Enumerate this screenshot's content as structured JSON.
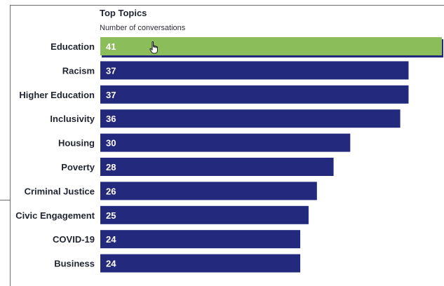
{
  "chart_data": {
    "type": "bar",
    "orientation": "horizontal",
    "title": "Top Topics",
    "subtitle": "Number of conversations",
    "categories": [
      "Education",
      "Racism",
      "Higher Education",
      "Inclusivity",
      "Housing",
      "Poverty",
      "Criminal Justice",
      "Civic Engagement",
      "COVID-19",
      "Business"
    ],
    "values": [
      41,
      37,
      37,
      36,
      30,
      28,
      26,
      25,
      24,
      24
    ],
    "highlighted_index": 0,
    "xlim": [
      0,
      41
    ],
    "grid": false,
    "colors": {
      "bar": "#232a7e",
      "highlight": "#8bbd5b",
      "text": "#1f2430",
      "value_text": "#ffffff"
    }
  },
  "cursor": {
    "icon": "hand-pointer-icon"
  }
}
